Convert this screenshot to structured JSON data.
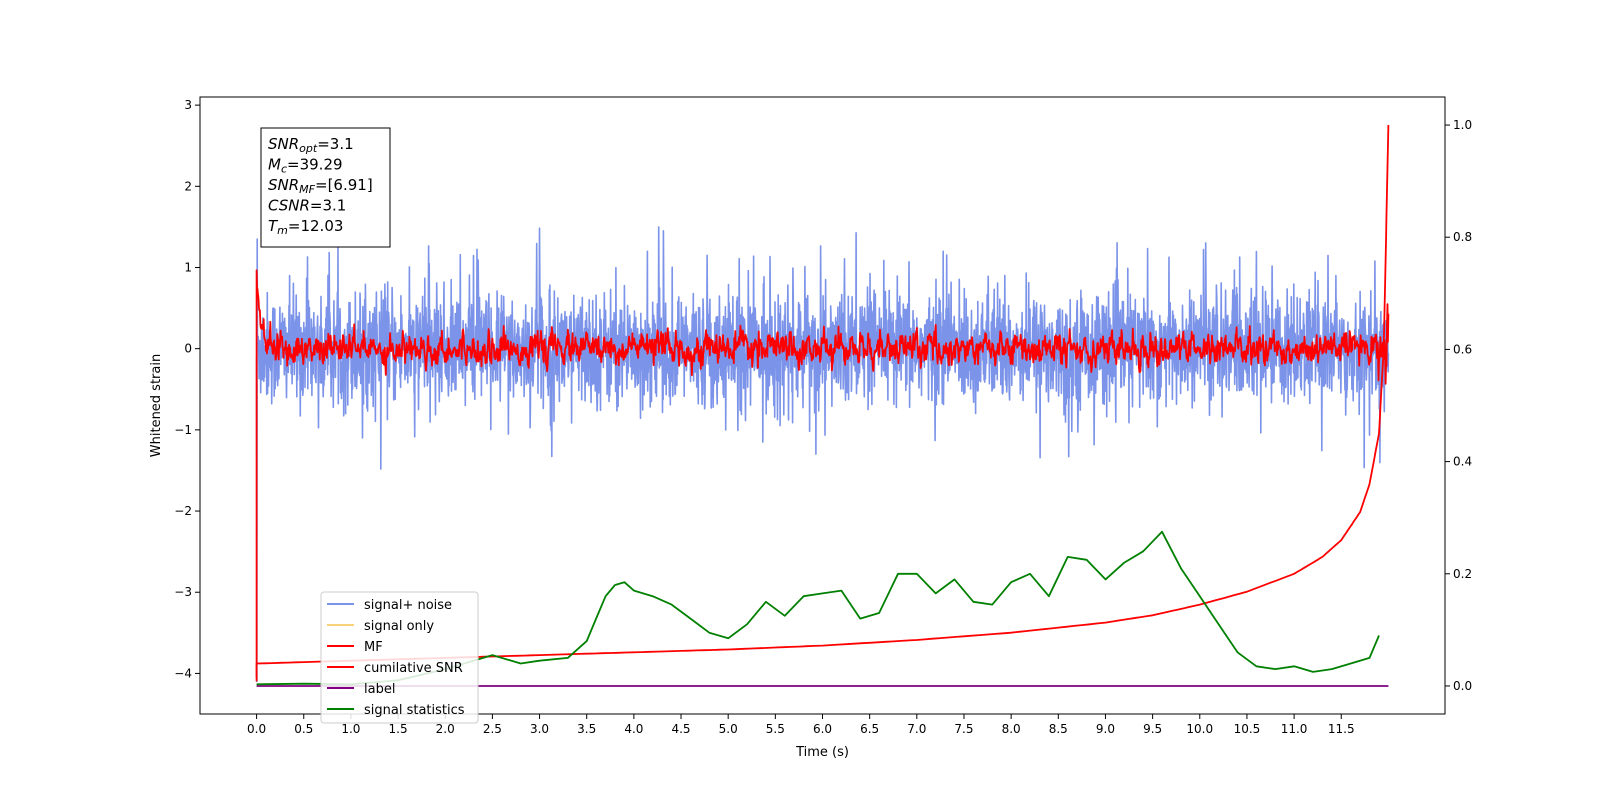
{
  "chart_data": {
    "type": "line",
    "xlabel": "Time (s)",
    "ylabel": "Whitened strain",
    "xlim": [
      -0.6,
      12.6
    ],
    "ylim_left": [
      -4.5,
      3.1
    ],
    "ylim_right": [
      -0.05,
      1.05
    ],
    "x_ticks": [
      "0.0",
      "0.5",
      "1.0",
      "1.5",
      "2.0",
      "2.5",
      "3.0",
      "3.5",
      "4.0",
      "4.5",
      "5.0",
      "5.5",
      "6.0",
      "6.5",
      "7.0",
      "7.5",
      "8.0",
      "8.5",
      "9.0",
      "9.5",
      "10.0",
      "10.5",
      "11.0",
      "11.5"
    ],
    "y_ticks_left": [
      "3",
      "2",
      "1",
      "0",
      "−1",
      "−2",
      "−3",
      "−4"
    ],
    "y_ticks_right": [
      "1.0",
      "0.8",
      "0.6",
      "0.4",
      "0.2",
      "0.0"
    ],
    "info_box": [
      {
        "base": "SNR",
        "sub": "opt",
        "value": "=3.1"
      },
      {
        "base": "M",
        "sub": "c",
        "value": "=39.29"
      },
      {
        "base": "SNR",
        "sub": "MF",
        "value": "=[6.91]"
      },
      {
        "base": "CSNR",
        "sub": "",
        "value": "=3.1"
      },
      {
        "base": "T",
        "sub": "m",
        "value": "=12.03"
      }
    ],
    "legend": {
      "position": "lower-left",
      "entries": [
        {
          "label": "signal+ noise",
          "color": "#7b93e8"
        },
        {
          "label": "signal only",
          "color": "#f7d27a"
        },
        {
          "label": "MF",
          "color": "#ff0000"
        },
        {
          "label": "cumilative SNR",
          "color": "#ff0000"
        },
        {
          "label": "label",
          "color": "#800080"
        },
        {
          "label": "signal statistics",
          "color": "#008000"
        }
      ]
    },
    "series": [
      {
        "name": "signal+ noise",
        "axis": "left",
        "kind": "noise",
        "color": "#7b93e8",
        "x_range": [
          0.0,
          12.0
        ],
        "mean": 0.0,
        "amplitude": 0.55,
        "spike_max": 1.55,
        "spike_min": -1.5
      },
      {
        "name": "MF",
        "axis": "left",
        "kind": "noise",
        "color": "#ff0000",
        "x_range": [
          0.0,
          12.0
        ],
        "mean": 0.0,
        "amplitude": 0.2,
        "start_value": 1.0
      },
      {
        "name": "label",
        "axis": "right",
        "color": "#800080",
        "x": [
          0.0,
          12.0
        ],
        "y": [
          0.0,
          0.0
        ]
      },
      {
        "name": "cumilative SNR",
        "axis": "right",
        "color": "#ff0000",
        "x": [
          0.0,
          1.0,
          2.0,
          3.0,
          4.0,
          5.0,
          6.0,
          7.0,
          8.0,
          9.0,
          9.5,
          10.0,
          10.5,
          11.0,
          11.3,
          11.5,
          11.7,
          11.8,
          11.9,
          11.95,
          12.0
        ],
        "y": [
          0.04,
          0.045,
          0.05,
          0.055,
          0.06,
          0.065,
          0.072,
          0.082,
          0.095,
          0.113,
          0.126,
          0.145,
          0.168,
          0.2,
          0.23,
          0.26,
          0.31,
          0.36,
          0.45,
          0.6,
          1.0
        ]
      },
      {
        "name": "signal statistics",
        "axis": "right",
        "color": "#008000",
        "x": [
          0.0,
          0.5,
          1.0,
          1.5,
          2.0,
          2.5,
          2.8,
          3.0,
          3.3,
          3.5,
          3.6,
          3.7,
          3.8,
          3.9,
          4.0,
          4.2,
          4.4,
          4.6,
          4.8,
          5.0,
          5.2,
          5.4,
          5.6,
          5.8,
          6.0,
          6.2,
          6.4,
          6.6,
          6.8,
          7.0,
          7.2,
          7.4,
          7.6,
          7.8,
          8.0,
          8.2,
          8.4,
          8.6,
          8.8,
          9.0,
          9.2,
          9.4,
          9.6,
          9.8,
          10.0,
          10.2,
          10.4,
          10.6,
          10.8,
          11.0,
          11.2,
          11.4,
          11.6,
          11.8,
          11.9
        ],
        "y": [
          0.003,
          0.004,
          0.003,
          0.01,
          0.03,
          0.055,
          0.04,
          0.045,
          0.05,
          0.08,
          0.12,
          0.16,
          0.18,
          0.185,
          0.17,
          0.16,
          0.145,
          0.12,
          0.095,
          0.085,
          0.11,
          0.15,
          0.125,
          0.16,
          0.165,
          0.17,
          0.12,
          0.13,
          0.2,
          0.2,
          0.165,
          0.19,
          0.15,
          0.145,
          0.185,
          0.2,
          0.16,
          0.23,
          0.225,
          0.19,
          0.22,
          0.24,
          0.275,
          0.21,
          0.16,
          0.11,
          0.06,
          0.035,
          0.03,
          0.035,
          0.025,
          0.03,
          0.04,
          0.05,
          0.09
        ]
      }
    ]
  }
}
